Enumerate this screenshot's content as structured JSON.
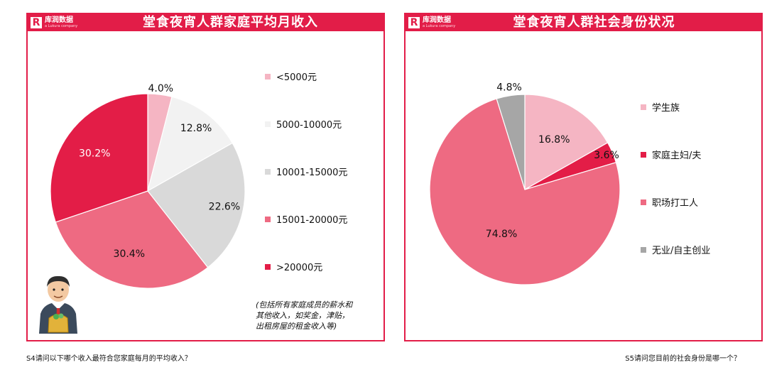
{
  "brand": {
    "name_cn": "库润数据",
    "name_en": "a Lukura company",
    "mark": "R"
  },
  "left": {
    "title": "堂食夜宵人群家庭平均月收入",
    "note": "(包括所有家庭成员的薪水和其他收入，如奖金，津贴，出租房屋的租金收入等)",
    "question": "S4请问以下哪个收入最符合您家庭每月的平均收入？"
  },
  "right": {
    "title": "堂食夜宵人群社会身份状况",
    "question": "S5请问您目前的社会身份是哪一个？"
  },
  "chart_data": [
    {
      "type": "pie",
      "title": "堂食夜宵人群家庭平均月收入",
      "slices": [
        {
          "label": "<5000元",
          "value": 4.0,
          "display": "4.0%",
          "color": "#f5b5c3"
        },
        {
          "label": "5000-10000元",
          "value": 12.8,
          "display": "12.8%",
          "color": "#f2f2f2"
        },
        {
          "label": "10001-15000元",
          "value": 22.6,
          "display": "22.6%",
          "color": "#d9d9d9"
        },
        {
          "label": "15001-20000元",
          "value": 30.4,
          "display": "30.4%",
          "color": "#ee6a82"
        },
        {
          "label": ">20000元",
          "value": 30.2,
          "display": "30.2%",
          "color": "#e31d47"
        }
      ]
    },
    {
      "type": "pie",
      "title": "堂食夜宵人群社会身份状况",
      "slices": [
        {
          "label": "学生族",
          "value": 16.8,
          "display": "16.8%",
          "color": "#f5b5c3"
        },
        {
          "label": "家庭主妇/夫",
          "value": 3.6,
          "display": "3.6%",
          "color": "#e31d47"
        },
        {
          "label": "职场打工人",
          "value": 74.8,
          "display": "74.8%",
          "color": "#ee6a82"
        },
        {
          "label": "无业/自主创业",
          "value": 4.8,
          "display": "4.8%",
          "color": "#a6a6a6"
        }
      ]
    }
  ]
}
